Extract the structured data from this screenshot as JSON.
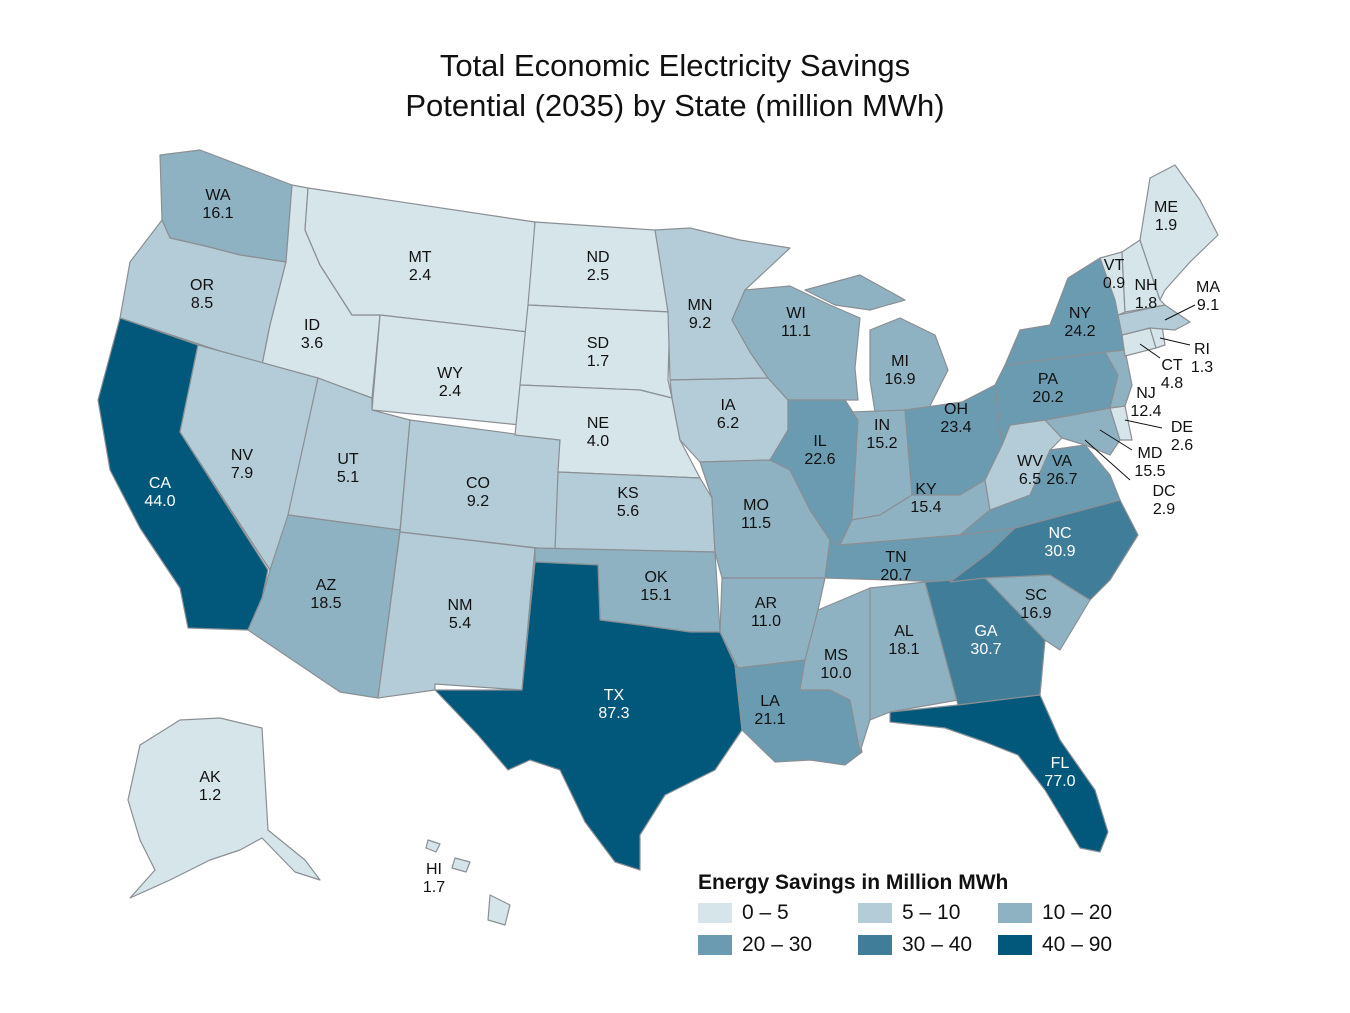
{
  "title_line1": "Total Economic Electricity Savings",
  "title_line2": "Potential (2035) by State (million MWh)",
  "legend": {
    "title": "Energy Savings in Million MWh",
    "bins": [
      {
        "label": "0 – 5",
        "color": "#d6e5ea"
      },
      {
        "label": "5 – 10",
        "color": "#b3ccd7"
      },
      {
        "label": "10 – 20",
        "color": "#8fb2c3"
      },
      {
        "label": "20 – 30",
        "color": "#6a9bb1"
      },
      {
        "label": "30 – 40",
        "color": "#3f7d98"
      },
      {
        "label": "40 – 90",
        "color": "#01587a"
      }
    ]
  },
  "states": {
    "WA": {
      "abbr": "WA",
      "value": "16.1"
    },
    "OR": {
      "abbr": "OR",
      "value": "8.5"
    },
    "CA": {
      "abbr": "CA",
      "value": "44.0"
    },
    "ID": {
      "abbr": "ID",
      "value": "3.6"
    },
    "NV": {
      "abbr": "NV",
      "value": "7.9"
    },
    "MT": {
      "abbr": "MT",
      "value": "2.4"
    },
    "WY": {
      "abbr": "WY",
      "value": "2.4"
    },
    "UT": {
      "abbr": "UT",
      "value": "5.1"
    },
    "AZ": {
      "abbr": "AZ",
      "value": "18.5"
    },
    "CO": {
      "abbr": "CO",
      "value": "9.2"
    },
    "NM": {
      "abbr": "NM",
      "value": "5.4"
    },
    "ND": {
      "abbr": "ND",
      "value": "2.5"
    },
    "SD": {
      "abbr": "SD",
      "value": "1.7"
    },
    "NE": {
      "abbr": "NE",
      "value": "4.0"
    },
    "KS": {
      "abbr": "KS",
      "value": "5.6"
    },
    "OK": {
      "abbr": "OK",
      "value": "15.1"
    },
    "TX": {
      "abbr": "TX",
      "value": "87.3"
    },
    "MN": {
      "abbr": "MN",
      "value": "9.2"
    },
    "IA": {
      "abbr": "IA",
      "value": "6.2"
    },
    "MO": {
      "abbr": "MO",
      "value": "11.5"
    },
    "AR": {
      "abbr": "AR",
      "value": "11.0"
    },
    "LA": {
      "abbr": "LA",
      "value": "21.1"
    },
    "WI": {
      "abbr": "WI",
      "value": "11.1"
    },
    "IL": {
      "abbr": "IL",
      "value": "22.6"
    },
    "MI": {
      "abbr": "MI",
      "value": "16.9"
    },
    "IN": {
      "abbr": "IN",
      "value": "15.2"
    },
    "OH": {
      "abbr": "OH",
      "value": "23.4"
    },
    "KY": {
      "abbr": "KY",
      "value": "15.4"
    },
    "TN": {
      "abbr": "TN",
      "value": "20.7"
    },
    "MS": {
      "abbr": "MS",
      "value": "10.0"
    },
    "AL": {
      "abbr": "AL",
      "value": "18.1"
    },
    "GA": {
      "abbr": "GA",
      "value": "30.7"
    },
    "FL": {
      "abbr": "FL",
      "value": "77.0"
    },
    "SC": {
      "abbr": "SC",
      "value": "16.9"
    },
    "NC": {
      "abbr": "NC",
      "value": "30.9"
    },
    "VA": {
      "abbr": "VA",
      "value": "26.7"
    },
    "WV": {
      "abbr": "WV",
      "value": "6.5"
    },
    "PA": {
      "abbr": "PA",
      "value": "20.2"
    },
    "NY": {
      "abbr": "NY",
      "value": "24.2"
    },
    "VT": {
      "abbr": "VT",
      "value": "0.9"
    },
    "NH": {
      "abbr": "NH",
      "value": "1.8"
    },
    "ME": {
      "abbr": "ME",
      "value": "1.9"
    },
    "MA": {
      "abbr": "MA",
      "value": "9.1"
    },
    "RI": {
      "abbr": "RI",
      "value": "1.3"
    },
    "CT": {
      "abbr": "CT",
      "value": "4.8"
    },
    "NJ": {
      "abbr": "NJ",
      "value": "12.4"
    },
    "DE": {
      "abbr": "DE",
      "value": "2.6"
    },
    "MD": {
      "abbr": "MD",
      "value": "15.5"
    },
    "DC": {
      "abbr": "DC",
      "value": "2.9"
    },
    "AK": {
      "abbr": "AK",
      "value": "1.2"
    },
    "HI": {
      "abbr": "HI",
      "value": "1.7"
    }
  }
}
